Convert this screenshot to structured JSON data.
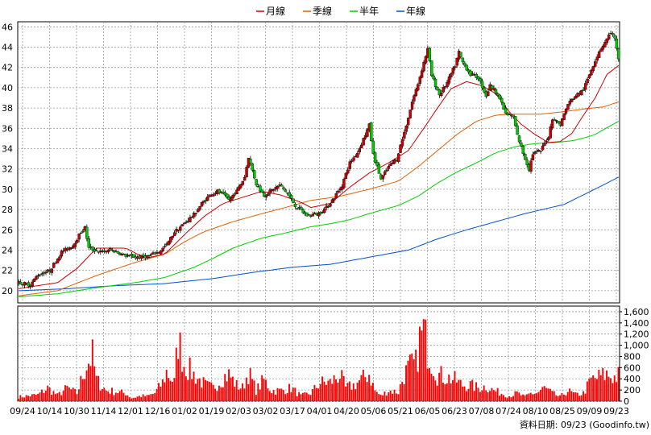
{
  "chart_data": {
    "type": "candlestick",
    "legend": [
      {
        "name": "月線",
        "color": "#cc0000"
      },
      {
        "name": "季線",
        "color": "#e06000"
      },
      {
        "name": "半年",
        "color": "#00cc00"
      },
      {
        "name": "年線",
        "color": "#0050cc"
      }
    ],
    "legend_position": "top-center",
    "x_ticks": [
      "09/24",
      "10/14",
      "10/30",
      "11/14",
      "12/01",
      "12/16",
      "01/02",
      "01/19",
      "02/03",
      "03/02",
      "03/17",
      "04/01",
      "04/20",
      "05/06",
      "05/21",
      "06/05",
      "06/23",
      "07/08",
      "07/24",
      "08/10",
      "08/25",
      "09/09",
      "09/23"
    ],
    "price_axis": {
      "ylim": [
        18.8,
        46.5
      ],
      "ticks": [
        20,
        22,
        24,
        26,
        28,
        30,
        32,
        34,
        36,
        38,
        40,
        42,
        44,
        46
      ]
    },
    "volume_axis": {
      "ylim": [
        0,
        1700
      ],
      "ticks": [
        0,
        200,
        400,
        600,
        800,
        "1,000",
        "1,200",
        "1,400",
        "1,600"
      ]
    },
    "grid": true,
    "price_anchors": [
      [
        0,
        20.8
      ],
      [
        6,
        20.6
      ],
      [
        10,
        21.6
      ],
      [
        16,
        22.0
      ],
      [
        22,
        23.8
      ],
      [
        28,
        24.5
      ],
      [
        32,
        25.8
      ],
      [
        34,
        26.2
      ],
      [
        36,
        24.2
      ],
      [
        42,
        23.8
      ],
      [
        48,
        24.0
      ],
      [
        54,
        23.5
      ],
      [
        60,
        23.3
      ],
      [
        66,
        23.4
      ],
      [
        72,
        23.8
      ],
      [
        76,
        24.5
      ],
      [
        80,
        25.8
      ],
      [
        86,
        26.8
      ],
      [
        90,
        27.5
      ],
      [
        94,
        28.6
      ],
      [
        98,
        29.4
      ],
      [
        102,
        29.8
      ],
      [
        108,
        29.0
      ],
      [
        112,
        29.8
      ],
      [
        116,
        31.2
      ],
      [
        118,
        33.2
      ],
      [
        122,
        30.5
      ],
      [
        126,
        29.4
      ],
      [
        130,
        29.9
      ],
      [
        134,
        30.4
      ],
      [
        138,
        29.6
      ],
      [
        142,
        28.4
      ],
      [
        148,
        27.4
      ],
      [
        154,
        27.6
      ],
      [
        158,
        28.2
      ],
      [
        162,
        29.2
      ],
      [
        166,
        30.4
      ],
      [
        170,
        32.6
      ],
      [
        174,
        33.6
      ],
      [
        178,
        35.4
      ],
      [
        180,
        36.3
      ],
      [
        182,
        33.4
      ],
      [
        186,
        31.0
      ],
      [
        190,
        32.2
      ],
      [
        194,
        33.0
      ],
      [
        198,
        35.6
      ],
      [
        202,
        38.6
      ],
      [
        205,
        40.4
      ],
      [
        208,
        42.5
      ],
      [
        210,
        43.8
      ],
      [
        212,
        41.2
      ],
      [
        216,
        39.3
      ],
      [
        220,
        40.5
      ],
      [
        224,
        42.2
      ],
      [
        226,
        43.5
      ],
      [
        228,
        42.5
      ],
      [
        232,
        41.3
      ],
      [
        236,
        41.0
      ],
      [
        240,
        39.2
      ],
      [
        242,
        40.2
      ],
      [
        246,
        39.4
      ],
      [
        250,
        37.4
      ],
      [
        254,
        37.1
      ],
      [
        256,
        35.3
      ],
      [
        260,
        33.0
      ],
      [
        262,
        32.0
      ],
      [
        264,
        33.5
      ],
      [
        268,
        33.8
      ],
      [
        272,
        35.2
      ],
      [
        274,
        37.0
      ],
      [
        278,
        36.4
      ],
      [
        282,
        38.4
      ],
      [
        286,
        39.2
      ],
      [
        290,
        39.8
      ],
      [
        294,
        41.8
      ],
      [
        298,
        43.6
      ],
      [
        302,
        44.8
      ],
      [
        304,
        45.5
      ],
      [
        306,
        44.8
      ],
      [
        308,
        42.7
      ]
    ],
    "ma_monthly": [
      [
        0,
        20.2
      ],
      [
        20,
        20.8
      ],
      [
        30,
        22.2
      ],
      [
        40,
        24.2
      ],
      [
        55,
        24.2
      ],
      [
        65,
        23.2
      ],
      [
        75,
        23.6
      ],
      [
        85,
        25.5
      ],
      [
        95,
        27.3
      ],
      [
        105,
        28.6
      ],
      [
        115,
        29.2
      ],
      [
        125,
        29.8
      ],
      [
        135,
        29.4
      ],
      [
        145,
        28.7
      ],
      [
        150,
        28.2
      ],
      [
        160,
        28.6
      ],
      [
        170,
        30.2
      ],
      [
        180,
        31.6
      ],
      [
        190,
        32.6
      ],
      [
        200,
        33.8
      ],
      [
        208,
        36.0
      ],
      [
        215,
        38.0
      ],
      [
        222,
        39.9
      ],
      [
        230,
        40.6
      ],
      [
        238,
        40.2
      ],
      [
        245,
        39.4
      ],
      [
        252,
        37.6
      ],
      [
        258,
        36.4
      ],
      [
        265,
        35.4
      ],
      [
        272,
        34.6
      ],
      [
        278,
        34.7
      ],
      [
        284,
        35.5
      ],
      [
        290,
        37.3
      ],
      [
        296,
        39.0
      ],
      [
        302,
        41.3
      ],
      [
        308,
        42.2
      ]
    ],
    "ma_quarter": [
      [
        0,
        19.5
      ],
      [
        20,
        20.0
      ],
      [
        40,
        21.5
      ],
      [
        60,
        22.8
      ],
      [
        75,
        23.6
      ],
      [
        85,
        24.8
      ],
      [
        95,
        25.8
      ],
      [
        110,
        26.8
      ],
      [
        125,
        27.6
      ],
      [
        135,
        28.1
      ],
      [
        150,
        28.9
      ],
      [
        165,
        29.3
      ],
      [
        180,
        30.0
      ],
      [
        195,
        30.8
      ],
      [
        205,
        32.2
      ],
      [
        215,
        33.8
      ],
      [
        225,
        35.4
      ],
      [
        235,
        36.7
      ],
      [
        245,
        37.3
      ],
      [
        255,
        37.4
      ],
      [
        268,
        37.4
      ],
      [
        278,
        37.6
      ],
      [
        290,
        37.9
      ],
      [
        300,
        38.1
      ],
      [
        308,
        38.6
      ]
    ],
    "ma_half": [
      [
        0,
        19.4
      ],
      [
        20,
        19.7
      ],
      [
        40,
        20.3
      ],
      [
        60,
        20.8
      ],
      [
        75,
        21.3
      ],
      [
        90,
        22.3
      ],
      [
        100,
        23.2
      ],
      [
        110,
        24.2
      ],
      [
        125,
        25.2
      ],
      [
        135,
        25.6
      ],
      [
        150,
        26.3
      ],
      [
        160,
        26.6
      ],
      [
        170,
        27.0
      ],
      [
        180,
        27.6
      ],
      [
        195,
        28.4
      ],
      [
        205,
        29.3
      ],
      [
        215,
        30.6
      ],
      [
        225,
        31.7
      ],
      [
        235,
        32.6
      ],
      [
        245,
        33.6
      ],
      [
        255,
        34.2
      ],
      [
        265,
        34.5
      ],
      [
        275,
        34.6
      ],
      [
        285,
        34.8
      ],
      [
        295,
        35.3
      ],
      [
        308,
        36.7
      ]
    ],
    "ma_year": [
      [
        0,
        20.0
      ],
      [
        25,
        20.2
      ],
      [
        50,
        20.5
      ],
      [
        75,
        20.7
      ],
      [
        100,
        21.2
      ],
      [
        120,
        21.8
      ],
      [
        140,
        22.3
      ],
      [
        160,
        22.6
      ],
      [
        180,
        23.3
      ],
      [
        200,
        24.0
      ],
      [
        215,
        25.1
      ],
      [
        230,
        26.0
      ],
      [
        245,
        26.8
      ],
      [
        260,
        27.6
      ],
      [
        280,
        28.5
      ],
      [
        300,
        30.4
      ],
      [
        308,
        31.2
      ]
    ],
    "volume_anchors": [
      [
        0,
        80
      ],
      [
        10,
        120
      ],
      [
        15,
        250
      ],
      [
        20,
        110
      ],
      [
        25,
        250
      ],
      [
        30,
        150
      ],
      [
        35,
        700
      ],
      [
        38,
        850
      ],
      [
        40,
        400
      ],
      [
        45,
        200
      ],
      [
        50,
        180
      ],
      [
        55,
        150
      ],
      [
        58,
        60
      ],
      [
        63,
        100
      ],
      [
        66,
        90
      ],
      [
        70,
        150
      ],
      [
        74,
        350
      ],
      [
        76,
        550
      ],
      [
        80,
        350
      ],
      [
        82,
        1180
      ],
      [
        85,
        700
      ],
      [
        90,
        500
      ],
      [
        93,
        400
      ],
      [
        96,
        300
      ],
      [
        100,
        250
      ],
      [
        105,
        450
      ],
      [
        108,
        500
      ],
      [
        112,
        300
      ],
      [
        115,
        250
      ],
      [
        118,
        550
      ],
      [
        122,
        200
      ],
      [
        126,
        400
      ],
      [
        130,
        200
      ],
      [
        135,
        200
      ],
      [
        140,
        250
      ],
      [
        145,
        100
      ],
      [
        150,
        150
      ],
      [
        155,
        350
      ],
      [
        160,
        350
      ],
      [
        165,
        500
      ],
      [
        168,
        250
      ],
      [
        172,
        300
      ],
      [
        176,
        400
      ],
      [
        180,
        520
      ],
      [
        183,
        200
      ],
      [
        186,
        100
      ],
      [
        190,
        200
      ],
      [
        195,
        170
      ],
      [
        198,
        500
      ],
      [
        201,
        650
      ],
      [
        204,
        700
      ],
      [
        206,
        1150
      ],
      [
        208,
        1300
      ],
      [
        210,
        1000
      ],
      [
        212,
        800
      ],
      [
        215,
        500
      ],
      [
        220,
        450
      ],
      [
        224,
        400
      ],
      [
        228,
        300
      ],
      [
        232,
        300
      ],
      [
        236,
        250
      ],
      [
        240,
        280
      ],
      [
        244,
        200
      ],
      [
        248,
        150
      ],
      [
        252,
        100
      ],
      [
        256,
        150
      ],
      [
        260,
        80
      ],
      [
        263,
        150
      ],
      [
        266,
        150
      ],
      [
        270,
        250
      ],
      [
        274,
        150
      ],
      [
        278,
        80
      ],
      [
        282,
        200
      ],
      [
        286,
        120
      ],
      [
        290,
        150
      ],
      [
        294,
        400
      ],
      [
        298,
        450
      ],
      [
        302,
        500
      ],
      [
        306,
        450
      ],
      [
        308,
        480
      ]
    ],
    "source": "資料日期: 09/23  (Goodinfo.tw)"
  }
}
